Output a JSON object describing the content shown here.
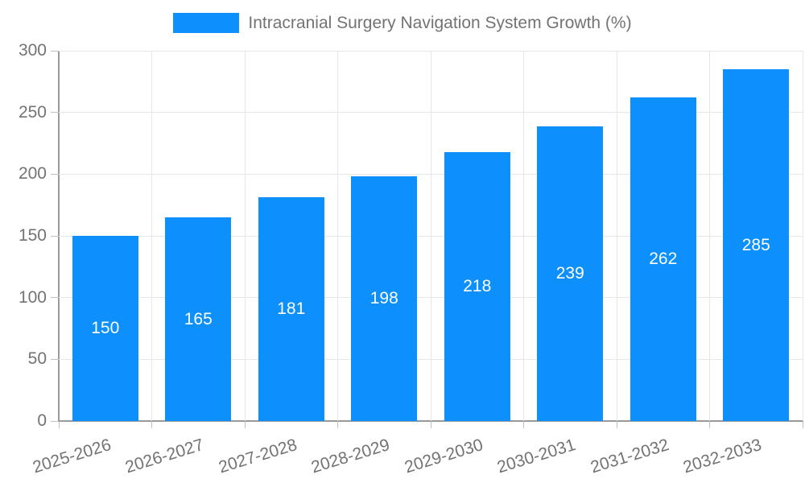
{
  "legend": {
    "label": "Intracranial Surgery Navigation System Growth (%)"
  },
  "chart_data": {
    "type": "bar",
    "title": "Intracranial Surgery Navigation System Growth (%)",
    "categories": [
      "2025-2026",
      "2026-2027",
      "2027-2028",
      "2028-2029",
      "2029-2030",
      "2030-2031",
      "2031-2032",
      "2032-2033"
    ],
    "values": [
      150,
      165,
      181,
      198,
      218,
      239,
      262,
      285
    ],
    "xlabel": "",
    "ylabel": "",
    "ylim": [
      0,
      300
    ],
    "y_ticks": [
      0,
      50,
      100,
      150,
      200,
      250,
      300
    ],
    "grid": true,
    "legend_position": "top-center",
    "bar_label_position": "inside-center",
    "x_label_rotation_deg": -17,
    "colors": {
      "bar": "#0d90fb",
      "grid": "#e7e7e7",
      "axis": "#999999",
      "tick": "#bfbfbf",
      "text": "#737373",
      "bar_label": "#ffffff",
      "background": "#ffffff"
    }
  }
}
